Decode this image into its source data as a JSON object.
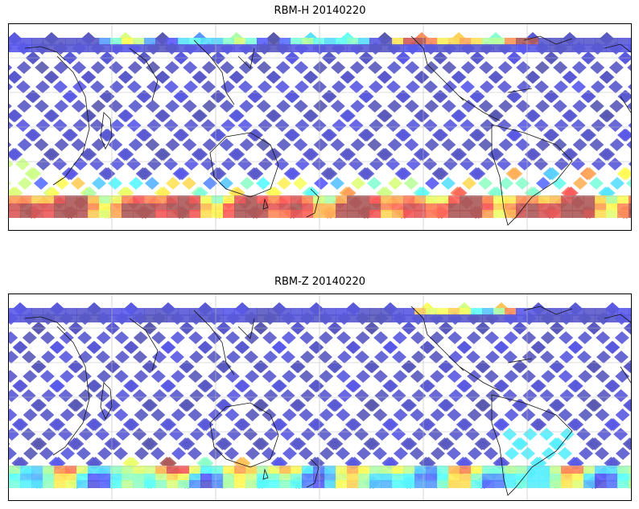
{
  "figure": {
    "panels": [
      {
        "title": "RBM-H 20140220",
        "colormap": "jet",
        "high_regions": "polar-bands",
        "colors": {
          "low": "#5e67f0",
          "mid": "#6ef0e0",
          "high": "#e8585a"
        }
      },
      {
        "title": "RBM-Z 20140220",
        "colormap": "jet",
        "high_regions": "south-band-weak",
        "colors": {
          "low": "#5e67f0",
          "mid": "#6ef0e0",
          "high": "#f06040"
        }
      }
    ],
    "gridlines": true,
    "coastlines": true
  }
}
